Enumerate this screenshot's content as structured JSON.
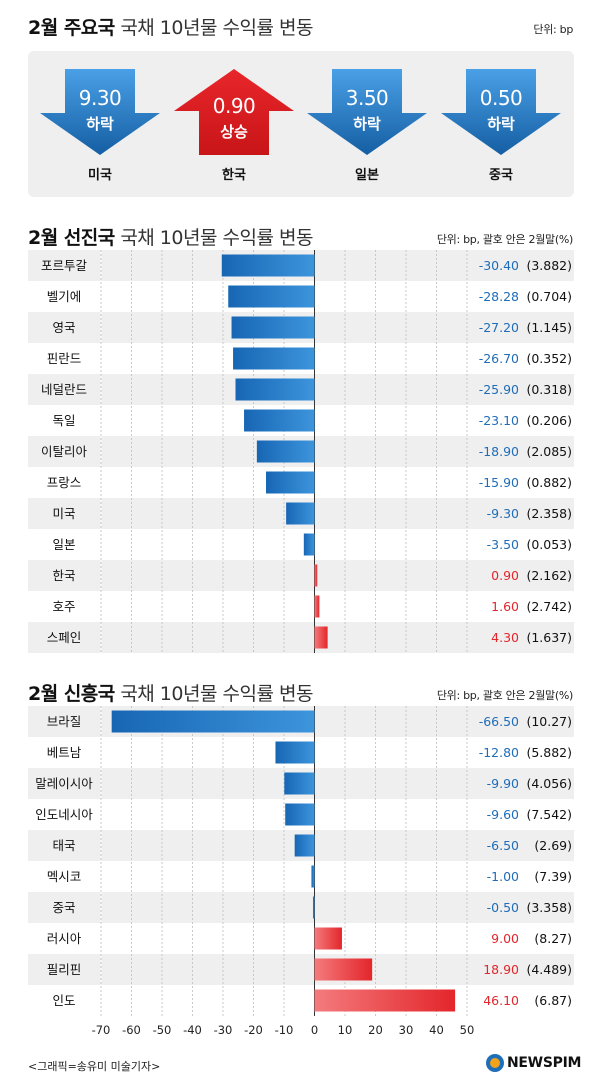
{
  "header": {
    "title_bold": "2월 주요국",
    "title_rest": "국채 10년물 수익률 변동",
    "unit": "단위: bp"
  },
  "major": [
    {
      "value": "9.30",
      "direction": "하락",
      "country": "미국",
      "trend": "down",
      "color": "#1f73c2"
    },
    {
      "value": "0.90",
      "direction": "상승",
      "country": "한국",
      "trend": "up",
      "color": "#e8262b"
    },
    {
      "value": "3.50",
      "direction": "하락",
      "country": "일본",
      "trend": "down",
      "color": "#1f73c2"
    },
    {
      "value": "0.50",
      "direction": "하락",
      "country": "중국",
      "trend": "down",
      "color": "#1f73c2"
    }
  ],
  "developed": {
    "title_bold": "2월 선진국",
    "title_rest": "국채 10년물 수익률 변동",
    "unit": "단위: bp, 괄호 안은 2월말(%)"
  },
  "emerging": {
    "title_bold": "2월 신흥국",
    "title_rest": "국채 10년물 수익률 변동",
    "unit": "단위: bp, 괄호 안은 2월말(%)"
  },
  "colors": {
    "negative": "#1f73c2",
    "positive": "#e8262b",
    "row_shade": "#efefef"
  },
  "chart_data": [
    {
      "type": "bar",
      "orientation": "horizontal",
      "title": "2월 선진국 국채 10년물 수익률 변동",
      "unit": "단위: bp, 괄호 안은 2월말(%)",
      "categories": [
        "포르투갈",
        "벨기에",
        "영국",
        "핀란드",
        "네덜란드",
        "독일",
        "이탈리아",
        "프랑스",
        "미국",
        "일본",
        "한국",
        "호주",
        "스페인"
      ],
      "values": [
        -30.4,
        -28.28,
        -27.2,
        -26.7,
        -25.9,
        -23.1,
        -18.9,
        -15.9,
        -9.3,
        -3.5,
        0.9,
        1.6,
        4.3
      ],
      "value_labels": [
        "-30.40",
        "-28.28",
        "-27.20",
        "-26.70",
        "-25.90",
        "-23.10",
        "-18.90",
        "-15.90",
        "-9.30",
        "-3.50",
        "0.90",
        "1.60",
        "4.30"
      ],
      "yields": [
        "(3.882)",
        "(0.704)",
        "(1.145)",
        "(0.352)",
        "(0.318)",
        "(0.206)",
        "(2.085)",
        "(0.882)",
        "(2.358)",
        "(0.053)",
        "(2.162)",
        "(2.742)",
        "(1.637)"
      ],
      "xlim": [
        -70,
        50
      ],
      "grid": true
    },
    {
      "type": "bar",
      "orientation": "horizontal",
      "title": "2월 신흥국 국채 10년물 수익률 변동",
      "unit": "단위: bp, 괄호 안은 2월말(%)",
      "categories": [
        "브라질",
        "베트남",
        "말레이시아",
        "인도네시아",
        "태국",
        "멕시코",
        "중국",
        "러시아",
        "필리핀",
        "인도"
      ],
      "values": [
        -66.5,
        -12.8,
        -9.9,
        -9.6,
        -6.5,
        -1.0,
        -0.5,
        9.0,
        18.9,
        46.1
      ],
      "value_labels": [
        "-66.50",
        "-12.80",
        "-9.90",
        "-9.60",
        "-6.50",
        "-1.00",
        "-0.50",
        "9.00",
        "18.90",
        "46.10"
      ],
      "yields": [
        "(10.27)",
        "(5.882)",
        "(4.056)",
        "(7.542)",
        "(2.69)",
        "(7.39)",
        "(3.358)",
        "(8.27)",
        "(4.489)",
        "(6.87)"
      ],
      "xlim": [
        -70,
        50
      ],
      "xticks": [
        -70,
        -60,
        -50,
        -40,
        -30,
        -20,
        -10,
        0,
        10,
        20,
        30,
        40,
        50
      ],
      "grid": true
    }
  ],
  "footer": {
    "credit": "<그래픽=송유미 미술기자>",
    "logo": "NEWSPIM"
  }
}
